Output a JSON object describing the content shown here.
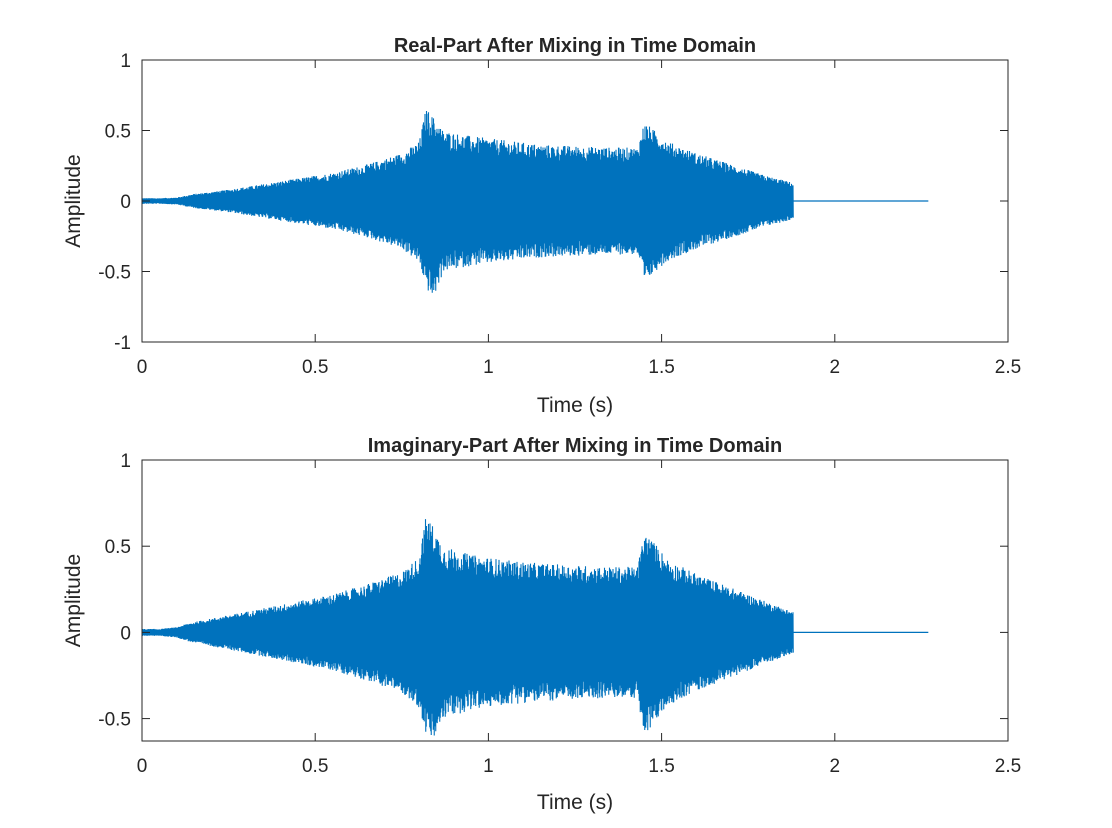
{
  "colors": {
    "background": "#ffffff",
    "axes_line": "#262626",
    "text": "#262626",
    "signal": "#0072BD"
  },
  "chart_data": [
    {
      "type": "line",
      "title": "Real-Part After Mixing in Time Domain",
      "xlabel": "Time (s)",
      "ylabel": "Amplitude",
      "xlim": [
        0,
        2.5
      ],
      "ylim": [
        -1,
        1
      ],
      "xticks": [
        0,
        0.5,
        1,
        1.5,
        2,
        2.5
      ],
      "xtick_labels": [
        "0",
        "0.5",
        "1",
        "1.5",
        "2",
        "2.5"
      ],
      "yticks": [
        -1,
        -0.5,
        0,
        0.5,
        1
      ],
      "ytick_labels": [
        "-1",
        "-0.5",
        "0",
        "0.5",
        "1"
      ],
      "grid": false,
      "series": [
        {
          "color": "#0072BD",
          "kind": "oscillating-envelope",
          "signal_end_time": 2.27,
          "envelope_time": [
            0,
            0.05,
            0.1,
            0.13,
            0.15,
            0.25,
            0.35,
            0.45,
            0.55,
            0.65,
            0.75,
            0.8,
            0.82,
            0.84,
            0.87,
            0.95,
            1.05,
            1.15,
            1.25,
            1.35,
            1.43,
            1.45,
            1.48,
            1.52,
            1.6,
            1.7,
            1.8,
            1.88,
            1.885
          ],
          "envelope_upper": [
            0.02,
            0.02,
            0.025,
            0.04,
            0.05,
            0.08,
            0.12,
            0.16,
            0.2,
            0.26,
            0.34,
            0.42,
            0.66,
            0.6,
            0.5,
            0.46,
            0.43,
            0.4,
            0.39,
            0.38,
            0.38,
            0.56,
            0.5,
            0.42,
            0.34,
            0.26,
            0.18,
            0.13,
            0.0
          ],
          "envelope_lower": [
            -0.02,
            -0.02,
            -0.025,
            -0.04,
            -0.05,
            -0.08,
            -0.12,
            -0.16,
            -0.2,
            -0.26,
            -0.34,
            -0.44,
            -0.62,
            -0.7,
            -0.5,
            -0.46,
            -0.43,
            -0.4,
            -0.39,
            -0.38,
            -0.38,
            -0.6,
            -0.5,
            -0.42,
            -0.34,
            -0.26,
            -0.18,
            -0.13,
            0.0
          ]
        }
      ]
    },
    {
      "type": "line",
      "title": "Imaginary-Part After Mixing in Time Domain",
      "xlabel": "Time (s)",
      "ylabel": "Amplitude",
      "xlim": [
        0,
        2.5
      ],
      "ylim": [
        -0.63,
        1
      ],
      "xticks": [
        0,
        0.5,
        1,
        1.5,
        2,
        2.5
      ],
      "xtick_labels": [
        "0",
        "0.5",
        "1",
        "1.5",
        "2",
        "2.5"
      ],
      "yticks": [
        -0.5,
        0,
        0.5,
        1
      ],
      "ytick_labels": [
        "-0.5",
        "0",
        "0.5",
        "1"
      ],
      "grid": false,
      "series": [
        {
          "color": "#0072BD",
          "kind": "oscillating-envelope",
          "signal_end_time": 2.27,
          "envelope_time": [
            0,
            0.05,
            0.1,
            0.13,
            0.15,
            0.25,
            0.35,
            0.45,
            0.55,
            0.65,
            0.75,
            0.8,
            0.82,
            0.84,
            0.87,
            0.95,
            1.05,
            1.15,
            1.25,
            1.35,
            1.43,
            1.45,
            1.48,
            1.52,
            1.6,
            1.7,
            1.8,
            1.88,
            1.885
          ],
          "envelope_upper": [
            0.02,
            0.02,
            0.03,
            0.05,
            0.06,
            0.1,
            0.14,
            0.18,
            0.22,
            0.28,
            0.35,
            0.44,
            0.68,
            0.62,
            0.5,
            0.45,
            0.42,
            0.4,
            0.39,
            0.38,
            0.38,
            0.58,
            0.52,
            0.42,
            0.34,
            0.26,
            0.18,
            0.12,
            0.0
          ],
          "envelope_lower": [
            -0.02,
            -0.02,
            -0.03,
            -0.05,
            -0.06,
            -0.1,
            -0.14,
            -0.18,
            -0.22,
            -0.28,
            -0.35,
            -0.44,
            -0.6,
            -0.63,
            -0.5,
            -0.45,
            -0.42,
            -0.4,
            -0.39,
            -0.38,
            -0.38,
            -0.62,
            -0.52,
            -0.42,
            -0.34,
            -0.26,
            -0.18,
            -0.12,
            0.0
          ]
        }
      ]
    }
  ]
}
